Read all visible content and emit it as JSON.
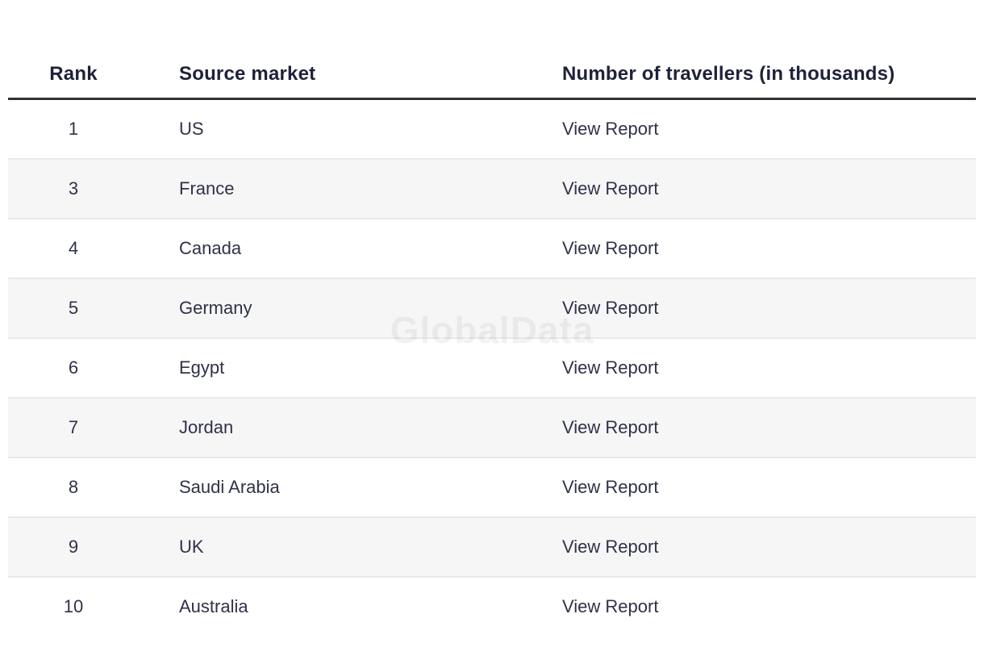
{
  "watermark": "GlobalData",
  "colors": {
    "header_text": "#1e2139",
    "body_text": "#2f3248",
    "header_rule": "#323232",
    "row_alt_bg": "#f6f6f6",
    "row_border": "#e9e9e9"
  },
  "table": {
    "headers": {
      "rank": "Rank",
      "source_market": "Source market",
      "travellers": "Number of travellers (in thousands)"
    },
    "rows": [
      {
        "rank": "1",
        "market": "US",
        "report": "View Report"
      },
      {
        "rank": "3",
        "market": "France",
        "report": "View Report"
      },
      {
        "rank": "4",
        "market": "Canada",
        "report": "View Report"
      },
      {
        "rank": "5",
        "market": "Germany",
        "report": "View Report"
      },
      {
        "rank": "6",
        "market": "Egypt",
        "report": "View Report"
      },
      {
        "rank": "7",
        "market": "Jordan",
        "report": "View Report"
      },
      {
        "rank": "8",
        "market": "Saudi Arabia",
        "report": "View Report"
      },
      {
        "rank": "9",
        "market": "UK",
        "report": "View Report"
      },
      {
        "rank": "10",
        "market": "Australia",
        "report": "View Report"
      }
    ]
  }
}
